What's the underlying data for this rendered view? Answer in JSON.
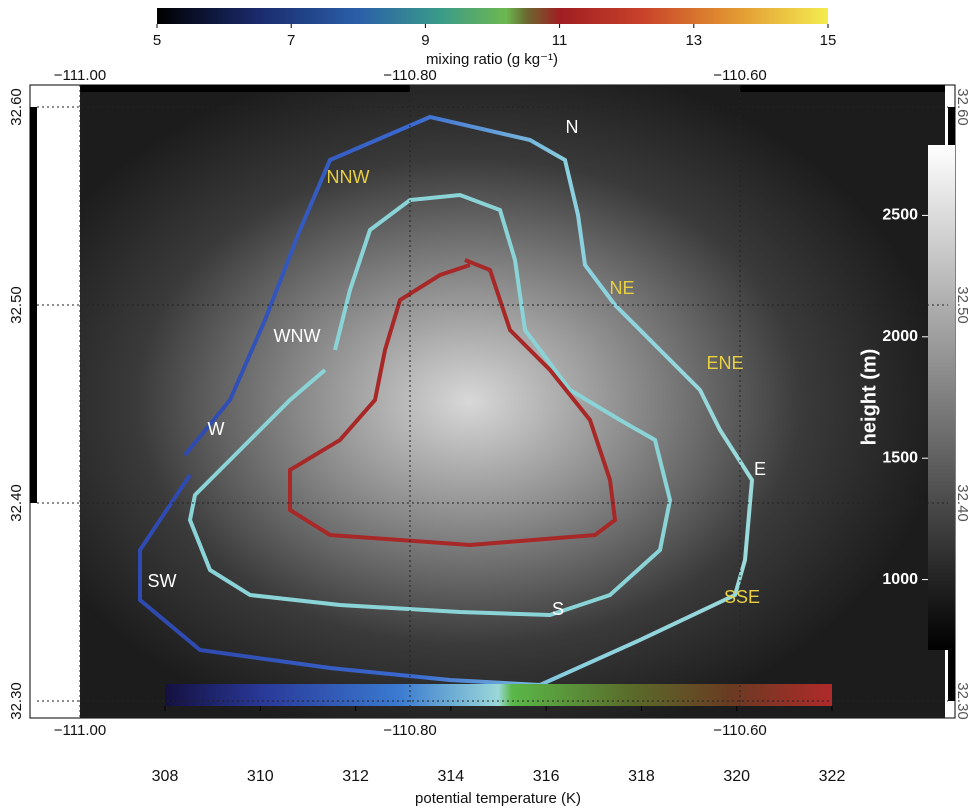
{
  "colorbars": {
    "mixing_ratio": {
      "label": "mixing ratio (g kg⁻¹)",
      "range": [
        5,
        15
      ],
      "ticks": [
        5,
        7,
        9,
        11,
        13,
        15
      ]
    },
    "potential_temperature": {
      "label": "potential temperature (K)",
      "range": [
        308,
        322
      ],
      "ticks": [
        308,
        310,
        312,
        314,
        316,
        318,
        320,
        322
      ]
    },
    "height": {
      "label": "height (m)",
      "range": [
        710,
        2790
      ],
      "ticks": [
        1000,
        1500,
        2000,
        2500
      ]
    }
  },
  "map": {
    "longitude_ticks": [
      {
        "value": -111.0,
        "label": "−111.00"
      },
      {
        "value": -110.8,
        "label": "−110.80"
      },
      {
        "value": -110.6,
        "label": "−110.60"
      }
    ],
    "latitude_ticks": [
      {
        "value": 32.3,
        "label": "32.30"
      },
      {
        "value": 32.4,
        "label": "32.40"
      },
      {
        "value": 32.5,
        "label": "32.50"
      },
      {
        "value": 32.6,
        "label": "32.60"
      }
    ],
    "places": [
      "N",
      "NE",
      "ENE",
      "E",
      "SSE",
      "S",
      "SW",
      "W",
      "WNW",
      "NNW"
    ]
  }
}
